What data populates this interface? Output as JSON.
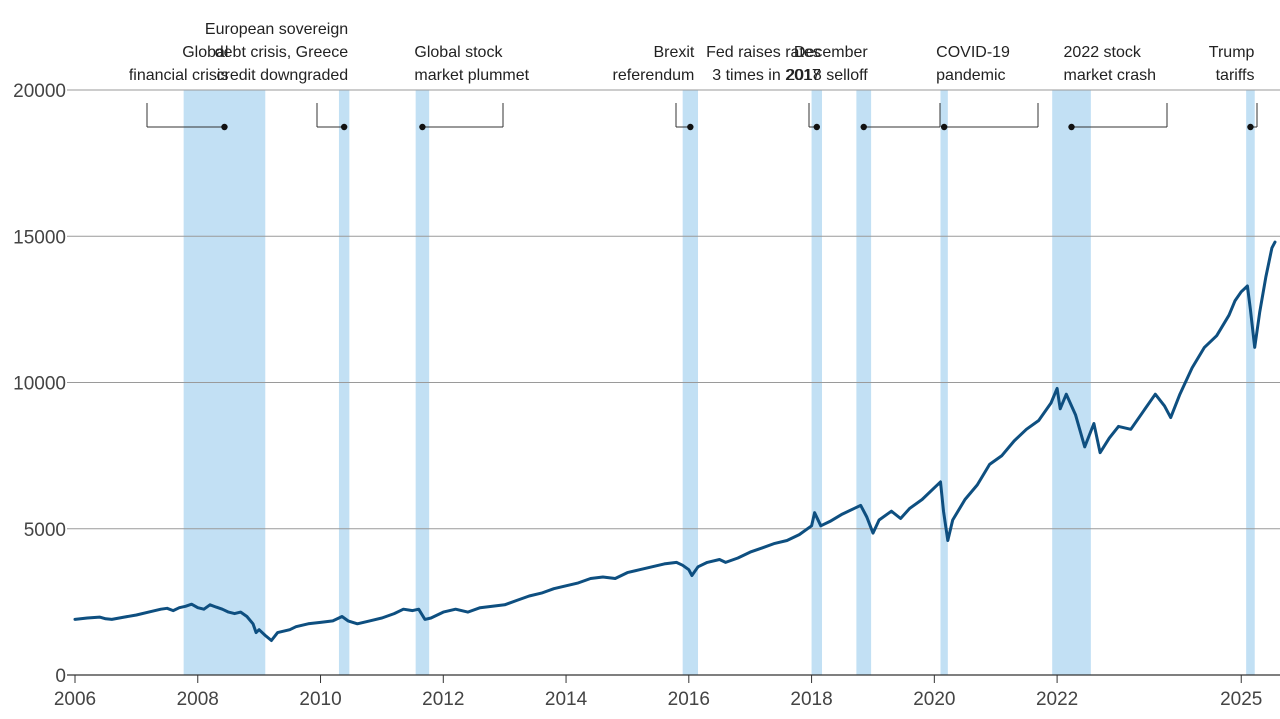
{
  "chart_data": {
    "type": "line",
    "title": "",
    "xlabel": "",
    "ylabel": "",
    "xlim": [
      2006.0,
      2025.55
    ],
    "ylim": [
      0,
      20000
    ],
    "x_ticks": [
      2006,
      2008,
      2010,
      2012,
      2014,
      2016,
      2018,
      2020,
      2022,
      2025
    ],
    "x_tick_labels": [
      "2006",
      "2008",
      "2010",
      "2012",
      "2014",
      "2016",
      "2018",
      "2020",
      "2022",
      "2025"
    ],
    "y_ticks": [
      0,
      5000,
      10000,
      15000,
      20000
    ],
    "y_tick_labels": [
      "0",
      "5000",
      "10000",
      "15000",
      "20000"
    ],
    "grid": "horizontal",
    "colors": {
      "line": "#0e4f80",
      "band": "#c2e0f4",
      "grid": "#9a9a9a",
      "axis": "#333333",
      "text": "#222222",
      "tick_text": "#444444"
    },
    "series": [
      {
        "name": "",
        "points": [
          [
            2006.0,
            1900
          ],
          [
            2006.2,
            1950
          ],
          [
            2006.4,
            1980
          ],
          [
            2006.5,
            1920
          ],
          [
            2006.6,
            1900
          ],
          [
            2006.8,
            1980
          ],
          [
            2007.0,
            2050
          ],
          [
            2007.2,
            2150
          ],
          [
            2007.4,
            2250
          ],
          [
            2007.5,
            2280
          ],
          [
            2007.6,
            2200
          ],
          [
            2007.7,
            2300
          ],
          [
            2007.8,
            2350
          ],
          [
            2007.9,
            2420
          ],
          [
            2008.0,
            2300
          ],
          [
            2008.1,
            2250
          ],
          [
            2008.2,
            2400
          ],
          [
            2008.3,
            2320
          ],
          [
            2008.4,
            2250
          ],
          [
            2008.5,
            2150
          ],
          [
            2008.6,
            2100
          ],
          [
            2008.7,
            2150
          ],
          [
            2008.8,
            2000
          ],
          [
            2008.9,
            1750
          ],
          [
            2008.95,
            1450
          ],
          [
            2009.0,
            1550
          ],
          [
            2009.1,
            1350
          ],
          [
            2009.2,
            1180
          ],
          [
            2009.3,
            1450
          ],
          [
            2009.5,
            1550
          ],
          [
            2009.6,
            1650
          ],
          [
            2009.8,
            1750
          ],
          [
            2010.0,
            1800
          ],
          [
            2010.2,
            1850
          ],
          [
            2010.3,
            1950
          ],
          [
            2010.35,
            2000
          ],
          [
            2010.45,
            1850
          ],
          [
            2010.6,
            1750
          ],
          [
            2010.8,
            1850
          ],
          [
            2011.0,
            1950
          ],
          [
            2011.2,
            2100
          ],
          [
            2011.35,
            2250
          ],
          [
            2011.5,
            2200
          ],
          [
            2011.6,
            2250
          ],
          [
            2011.7,
            1900
          ],
          [
            2011.8,
            1950
          ],
          [
            2012.0,
            2150
          ],
          [
            2012.2,
            2250
          ],
          [
            2012.4,
            2150
          ],
          [
            2012.6,
            2300
          ],
          [
            2012.8,
            2350
          ],
          [
            2013.0,
            2400
          ],
          [
            2013.2,
            2550
          ],
          [
            2013.4,
            2700
          ],
          [
            2013.6,
            2800
          ],
          [
            2013.8,
            2950
          ],
          [
            2014.0,
            3050
          ],
          [
            2014.2,
            3150
          ],
          [
            2014.4,
            3300
          ],
          [
            2014.6,
            3350
          ],
          [
            2014.8,
            3300
          ],
          [
            2015.0,
            3500
          ],
          [
            2015.2,
            3600
          ],
          [
            2015.4,
            3700
          ],
          [
            2015.6,
            3800
          ],
          [
            2015.8,
            3850
          ],
          [
            2015.9,
            3750
          ],
          [
            2016.0,
            3600
          ],
          [
            2016.05,
            3400
          ],
          [
            2016.15,
            3700
          ],
          [
            2016.3,
            3850
          ],
          [
            2016.5,
            3950
          ],
          [
            2016.6,
            3850
          ],
          [
            2016.8,
            4000
          ],
          [
            2017.0,
            4200
          ],
          [
            2017.2,
            4350
          ],
          [
            2017.4,
            4500
          ],
          [
            2017.6,
            4600
          ],
          [
            2017.8,
            4800
          ],
          [
            2018.0,
            5100
          ],
          [
            2018.05,
            5550
          ],
          [
            2018.15,
            5100
          ],
          [
            2018.3,
            5250
          ],
          [
            2018.5,
            5500
          ],
          [
            2018.7,
            5700
          ],
          [
            2018.8,
            5800
          ],
          [
            2018.9,
            5400
          ],
          [
            2019.0,
            4850
          ],
          [
            2019.1,
            5300
          ],
          [
            2019.3,
            5600
          ],
          [
            2019.45,
            5350
          ],
          [
            2019.6,
            5700
          ],
          [
            2019.8,
            6000
          ],
          [
            2020.0,
            6400
          ],
          [
            2020.1,
            6600
          ],
          [
            2020.15,
            5600
          ],
          [
            2020.22,
            4600
          ],
          [
            2020.3,
            5300
          ],
          [
            2020.5,
            6000
          ],
          [
            2020.7,
            6500
          ],
          [
            2020.9,
            7200
          ],
          [
            2021.1,
            7500
          ],
          [
            2021.3,
            8000
          ],
          [
            2021.5,
            8400
          ],
          [
            2021.7,
            8700
          ],
          [
            2021.9,
            9300
          ],
          [
            2022.0,
            9800
          ],
          [
            2022.05,
            9100
          ],
          [
            2022.15,
            9600
          ],
          [
            2022.3,
            8900
          ],
          [
            2022.45,
            7800
          ],
          [
            2022.6,
            8600
          ],
          [
            2022.7,
            7600
          ],
          [
            2022.85,
            8100
          ],
          [
            2023.0,
            8500
          ],
          [
            2023.2,
            8400
          ],
          [
            2023.4,
            9000
          ],
          [
            2023.6,
            9600
          ],
          [
            2023.75,
            9200
          ],
          [
            2023.85,
            8800
          ],
          [
            2024.0,
            9600
          ],
          [
            2024.2,
            10500
          ],
          [
            2024.4,
            11200
          ],
          [
            2024.6,
            11600
          ],
          [
            2024.8,
            12300
          ],
          [
            2024.9,
            12800
          ],
          [
            2025.0,
            13100
          ],
          [
            2025.1,
            13300
          ],
          [
            2025.15,
            12500
          ],
          [
            2025.22,
            11200
          ],
          [
            2025.3,
            12400
          ],
          [
            2025.4,
            13600
          ],
          [
            2025.5,
            14600
          ],
          [
            2025.55,
            14800
          ]
        ]
      }
    ],
    "events": [
      {
        "label_lines": [
          "Global",
          "financial crisis"
        ],
        "start": 2007.77,
        "end": 2009.1,
        "anchor": "right",
        "line_dir": "left"
      },
      {
        "label_lines": [
          "European sovereign",
          "debt crisis, Greece",
          "credit downgraded"
        ],
        "start": 2010.3,
        "end": 2010.47,
        "anchor": "right",
        "line_dir": "left"
      },
      {
        "label_lines": [
          "Global stock",
          "market plummet"
        ],
        "start": 2011.55,
        "end": 2011.77,
        "anchor": "start",
        "line_dir": "right"
      },
      {
        "label_lines": [
          "Brexit",
          "referendum"
        ],
        "start": 2015.9,
        "end": 2016.15,
        "anchor": "right",
        "line_dir": "left"
      },
      {
        "label_lines": [
          "Fed raises rates",
          "3 times in 2017"
        ],
        "start": 2018.0,
        "end": 2018.17,
        "anchor": "right",
        "line_dir": "left"
      },
      {
        "label_lines": [
          "December",
          "2018 selloff"
        ],
        "start": 2018.73,
        "end": 2018.97,
        "anchor": "right",
        "line_dir": "right"
      },
      {
        "label_lines": [
          "COVID-19",
          "pandemic"
        ],
        "start": 2020.1,
        "end": 2020.22,
        "anchor": "start",
        "line_dir": "right"
      },
      {
        "label_lines": [
          "2022 stock",
          "market crash"
        ],
        "start": 2021.92,
        "end": 2022.55,
        "anchor": "start",
        "line_dir": "right"
      },
      {
        "label_lines": [
          "Trump",
          "tariffs"
        ],
        "start": 2025.08,
        "end": 2025.22,
        "anchor": "right",
        "line_dir": "left"
      }
    ]
  }
}
